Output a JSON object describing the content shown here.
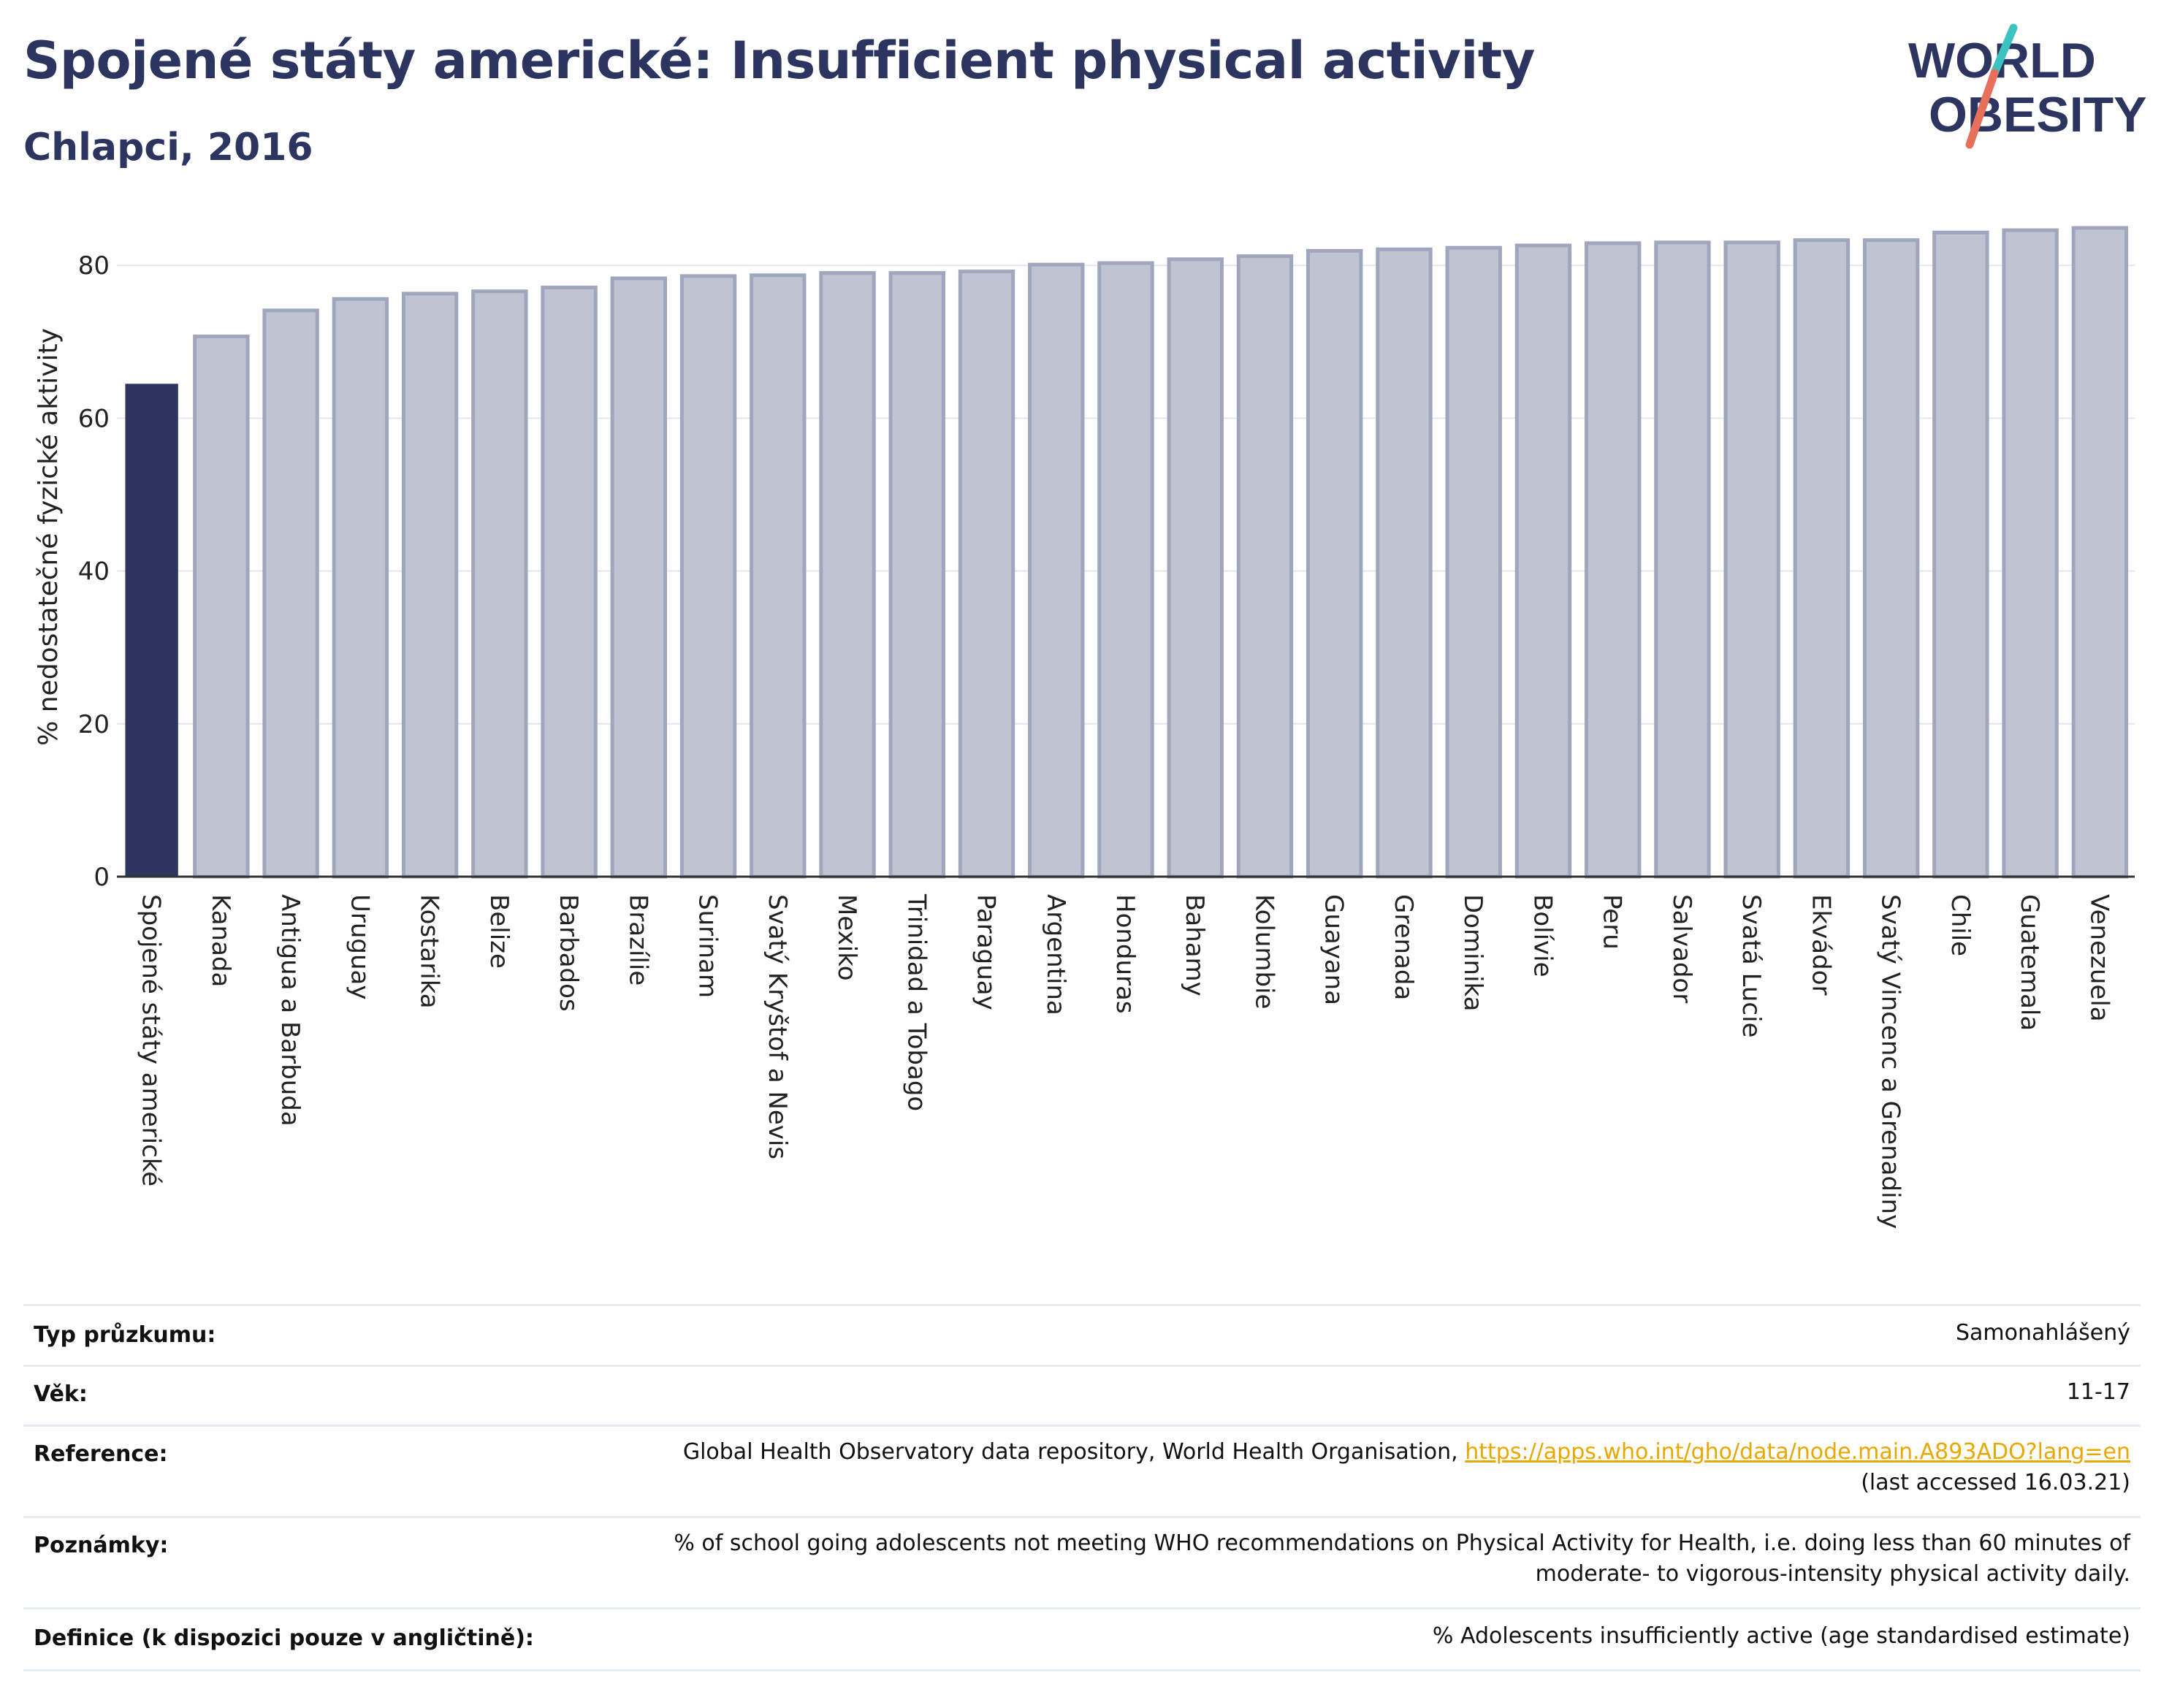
{
  "header": {
    "title": "Spojené státy americké: Insufficient physical activity",
    "subtitle": "Chlapci, 2016"
  },
  "logo": {
    "line1": "WORLD",
    "line2": "OBESITY",
    "colors": {
      "text": "#2b3560",
      "slash_teal": "#3cc3c0",
      "slash_red": "#e8705a"
    }
  },
  "chart_data": {
    "type": "bar",
    "ylabel": "% nedostatečné fyzické aktivity",
    "ylim": [
      0,
      87
    ],
    "yticks": [
      0,
      20,
      40,
      60,
      80
    ],
    "grid": true,
    "highlight_color": "#2b3560",
    "bar_color": "#c0c4d2",
    "bar_edge_color": "#9fa6bd",
    "categories": [
      "Spojené státy americké",
      "Kanada",
      "Antigua a Barbuda",
      "Uruguay",
      "Kostarika",
      "Belize",
      "Barbados",
      "Brazílie",
      "Surinam",
      "Svatý Kryštof a Nevis",
      "Mexiko",
      "Trinidad a Tobago",
      "Paraguay",
      "Argentina",
      "Honduras",
      "Bahamy",
      "Kolumbie",
      "Guayana",
      "Grenada",
      "Dominika",
      "Bolívie",
      "Peru",
      "Salvador",
      "Svatá Lucie",
      "Ekvádor",
      "Svatý Vincenc a Grenadiny",
      "Chile",
      "Guatemala",
      "Venezuela"
    ],
    "values": [
      64.5,
      70.7,
      74.1,
      75.6,
      76.3,
      76.6,
      77.1,
      78.3,
      78.6,
      78.7,
      79.0,
      79.0,
      79.2,
      80.1,
      80.3,
      80.8,
      81.2,
      81.9,
      82.1,
      82.3,
      82.6,
      82.9,
      83.0,
      83.0,
      83.3,
      83.3,
      84.3,
      84.6,
      84.9
    ]
  },
  "meta": {
    "rows": [
      {
        "label": "Typ průzkumu:",
        "value": "Samonahlášený"
      },
      {
        "label": "Věk:",
        "value": "11-17"
      },
      {
        "label": "Reference:",
        "value": "Global Health Observatory data repository, World Health Organisation,",
        "link": "https://apps.who.int/gho/data/node.main.A893ADO?lang=en",
        "value2": "(last accessed 16.03.21)"
      },
      {
        "label": "Poznámky:",
        "value": "% of school going adolescents not meeting WHO recommendations on Physical Activity for Health, i.e. doing less than 60 minutes of",
        "value2": "moderate- to vigorous-intensity physical activity daily."
      },
      {
        "label": "Definice (k dispozici pouze v angličtině):",
        "value": "% Adolescents insufficiently active (age standardised estimate)"
      }
    ]
  }
}
